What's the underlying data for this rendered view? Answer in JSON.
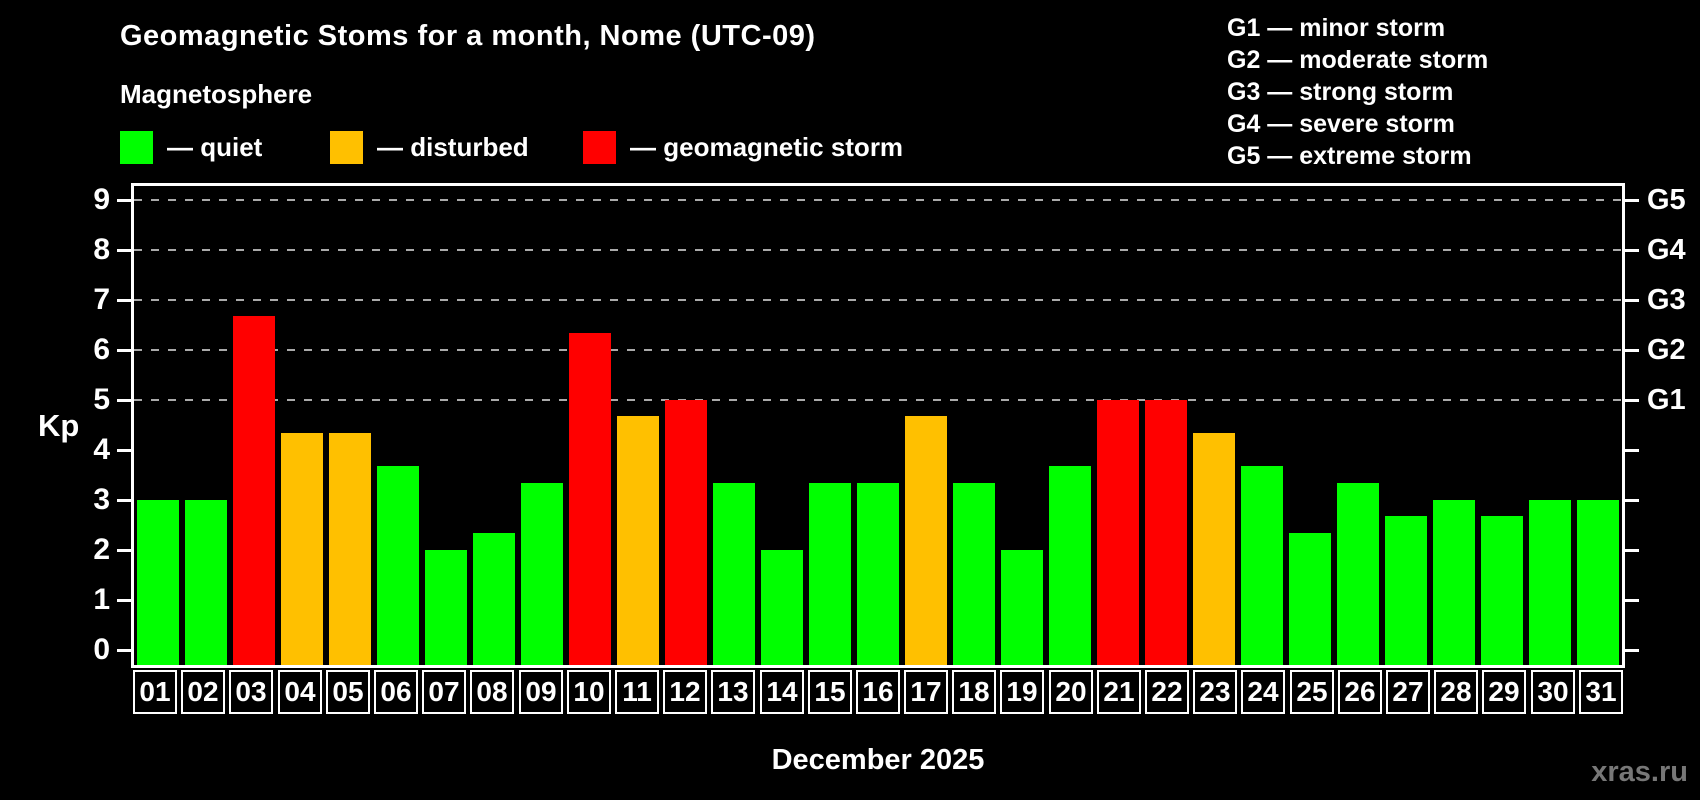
{
  "header": {
    "title": "Geomagnetic Stoms for a month, Nome (UTC-09)"
  },
  "legend": {
    "title": "Magnetosphere",
    "items": [
      {
        "key": "quiet",
        "label": "— quiet",
        "swatch_color": "#00ff00"
      },
      {
        "key": "disturbed",
        "label": "— disturbed",
        "swatch_color": "#ffc000"
      },
      {
        "key": "storm",
        "label": "— geomagnetic storm",
        "swatch_color": "#ff0000"
      }
    ]
  },
  "g_levels": [
    {
      "tick": "G1",
      "kp": 5,
      "legend_label": "G1 — minor storm"
    },
    {
      "tick": "G2",
      "kp": 6,
      "legend_label": "G2 — moderate storm"
    },
    {
      "tick": "G3",
      "kp": 7,
      "legend_label": "G3 — strong storm"
    },
    {
      "tick": "G4",
      "kp": 8,
      "legend_label": "G4 — severe storm"
    },
    {
      "tick": "G5",
      "kp": 9,
      "legend_label": "G5 — extreme storm"
    }
  ],
  "axes": {
    "left_label": "Kp",
    "kp_ticks": [
      0,
      1,
      2,
      3,
      4,
      5,
      6,
      7,
      8,
      9
    ],
    "gridlines_kp": [
      5,
      6,
      7,
      8,
      9
    ]
  },
  "chart_data": {
    "type": "bar",
    "title": "Geomagnetic Stoms for a month, Nome (UTC-09)",
    "xlabel": "December 2025",
    "ylabel": "Kp",
    "ylim": [
      0,
      9
    ],
    "grid": "horizontal dashed lines at Kp 5,6,7,8,9 (G1–G5)",
    "legend_position": "top-left",
    "categories": [
      "01",
      "02",
      "03",
      "04",
      "05",
      "06",
      "07",
      "08",
      "09",
      "10",
      "11",
      "12",
      "13",
      "14",
      "15",
      "16",
      "17",
      "18",
      "19",
      "20",
      "21",
      "22",
      "23",
      "24",
      "25",
      "26",
      "27",
      "28",
      "29",
      "30",
      "31"
    ],
    "values": [
      3.0,
      3.0,
      6.67,
      4.33,
      4.33,
      3.67,
      2.0,
      2.33,
      3.33,
      6.33,
      4.67,
      5.0,
      3.33,
      2.0,
      3.33,
      3.33,
      4.67,
      3.33,
      2.0,
      3.67,
      5.0,
      5.0,
      4.33,
      3.67,
      2.33,
      3.33,
      2.67,
      3.0,
      2.67,
      3.0,
      3.0
    ],
    "statuses": [
      "quiet",
      "quiet",
      "storm",
      "disturbed",
      "disturbed",
      "quiet",
      "quiet",
      "quiet",
      "quiet",
      "storm",
      "disturbed",
      "storm",
      "quiet",
      "quiet",
      "quiet",
      "quiet",
      "disturbed",
      "quiet",
      "quiet",
      "quiet",
      "storm",
      "storm",
      "disturbed",
      "quiet",
      "quiet",
      "quiet",
      "quiet",
      "quiet",
      "quiet",
      "quiet",
      "quiet"
    ],
    "status_colors": {
      "quiet": "#00ff00",
      "disturbed": "#ffc000",
      "storm": "#ff0000"
    }
  },
  "colors": {
    "background": "#000000",
    "axis": "#ffffff",
    "gridline": "#aaaaaa",
    "watermark": "#777777"
  },
  "footer": {
    "watermark": "xras.ru"
  }
}
